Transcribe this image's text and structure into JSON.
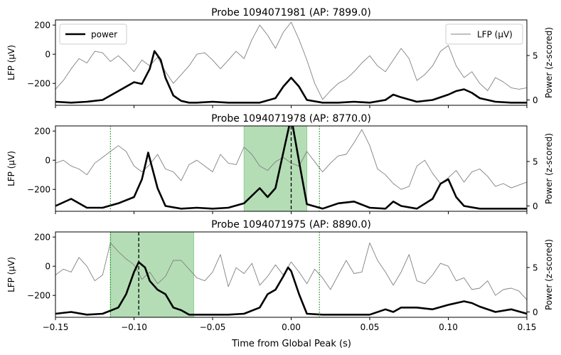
{
  "figure": {
    "xlabel": "Time from Global Peak (s)",
    "legend": {
      "power_label": "power",
      "lfp_label": "LFP (µV)"
    }
  },
  "chart_data": [
    {
      "type": "line",
      "title": "Probe 1094071981 (AP: 7899.0)",
      "xlabel": "Time from Global Peak (s)",
      "ylabel": "LFP (µV)",
      "ylabel_right": "Power (z-scored)",
      "xlim": [
        -0.15,
        0.15
      ],
      "ylim": [
        -350,
        235
      ],
      "ylim_right": [
        -0.6,
        9.0
      ],
      "yticks": [
        -200,
        0,
        200
      ],
      "yticks_right": [
        0,
        5
      ],
      "xticks": [
        -0.15,
        -0.1,
        -0.05,
        0.0,
        0.05,
        0.1,
        0.15
      ],
      "legend": [
        "power",
        "LFP (µV)"
      ],
      "series": [
        {
          "name": "LFP (µV)",
          "axis": "left",
          "color": "#808080",
          "x": [
            -0.15,
            -0.145,
            -0.14,
            -0.135,
            -0.13,
            -0.125,
            -0.12,
            -0.115,
            -0.11,
            -0.105,
            -0.1,
            -0.095,
            -0.09,
            -0.085,
            -0.08,
            -0.075,
            -0.07,
            -0.065,
            -0.06,
            -0.055,
            -0.05,
            -0.045,
            -0.04,
            -0.035,
            -0.03,
            -0.025,
            -0.02,
            -0.015,
            -0.01,
            -0.005,
            0.0,
            0.005,
            0.01,
            0.015,
            0.02,
            0.025,
            0.03,
            0.035,
            0.04,
            0.045,
            0.05,
            0.055,
            0.06,
            0.065,
            0.07,
            0.075,
            0.08,
            0.085,
            0.09,
            0.095,
            0.1,
            0.105,
            0.11,
            0.115,
            0.12,
            0.125,
            0.13,
            0.135,
            0.14,
            0.145,
            0.15
          ],
          "y": [
            -240,
            -180,
            -100,
            -30,
            -60,
            20,
            10,
            -50,
            -10,
            -60,
            -120,
            -40,
            -80,
            -20,
            -120,
            -200,
            -140,
            -80,
            0,
            10,
            -40,
            -100,
            -40,
            20,
            -30,
            100,
            200,
            130,
            40,
            150,
            220,
            100,
            -40,
            -200,
            -310,
            -250,
            -200,
            -170,
            -120,
            -60,
            -10,
            -80,
            -120,
            -40,
            40,
            -30,
            -180,
            -140,
            -80,
            20,
            60,
            -80,
            -160,
            -120,
            -200,
            -250,
            -160,
            -190,
            -230,
            -240,
            -230
          ]
        },
        {
          "name": "power",
          "axis": "right",
          "color": "#000000",
          "x": [
            -0.15,
            -0.14,
            -0.13,
            -0.12,
            -0.11,
            -0.1,
            -0.095,
            -0.09,
            -0.087,
            -0.083,
            -0.08,
            -0.075,
            -0.07,
            -0.065,
            -0.06,
            -0.05,
            -0.04,
            -0.03,
            -0.02,
            -0.01,
            -0.005,
            0.0,
            0.005,
            0.01,
            0.02,
            0.03,
            0.04,
            0.05,
            0.06,
            0.065,
            0.07,
            0.08,
            0.09,
            0.1,
            0.105,
            0.11,
            0.115,
            0.12,
            0.13,
            0.14,
            0.15
          ],
          "y": [
            -0.2,
            -0.3,
            -0.2,
            0.0,
            1.0,
            2.0,
            1.8,
            3.5,
            5.5,
            4.5,
            2.5,
            0.5,
            -0.1,
            -0.3,
            -0.3,
            -0.2,
            -0.3,
            -0.3,
            -0.3,
            0.2,
            1.5,
            2.5,
            1.5,
            0.0,
            -0.3,
            -0.3,
            -0.2,
            -0.3,
            0.0,
            0.6,
            0.3,
            -0.2,
            0.0,
            0.6,
            1.0,
            1.2,
            0.8,
            0.2,
            -0.2,
            -0.3,
            -0.3
          ]
        }
      ]
    },
    {
      "type": "line",
      "title": "Probe 1094071978 (AP: 8770.0)",
      "xlabel": "Time from Global Peak (s)",
      "ylabel": "LFP (µV)",
      "ylabel_right": "Power (z-scored)",
      "xlim": [
        -0.15,
        0.15
      ],
      "ylim": [
        -350,
        235
      ],
      "ylim_right": [
        -0.6,
        9.0
      ],
      "yticks": [
        -200,
        0,
        200
      ],
      "yticks_right": [
        0,
        5
      ],
      "xticks": [
        -0.15,
        -0.1,
        -0.05,
        0.0,
        0.05,
        0.1,
        0.15
      ],
      "shaded_region": {
        "x": [
          -0.03,
          0.01
        ],
        "color": "#4caf50"
      },
      "dotted_vlines": [
        -0.115,
        0.018
      ],
      "dashed_vline": 0.0,
      "series": [
        {
          "name": "LFP (µV)",
          "axis": "left",
          "color": "#808080",
          "x": [
            -0.15,
            -0.145,
            -0.14,
            -0.135,
            -0.13,
            -0.125,
            -0.12,
            -0.115,
            -0.11,
            -0.105,
            -0.1,
            -0.095,
            -0.09,
            -0.085,
            -0.08,
            -0.075,
            -0.07,
            -0.065,
            -0.06,
            -0.055,
            -0.05,
            -0.045,
            -0.04,
            -0.035,
            -0.03,
            -0.025,
            -0.02,
            -0.015,
            -0.01,
            -0.005,
            0.0,
            0.005,
            0.01,
            0.015,
            0.02,
            0.025,
            0.03,
            0.035,
            0.04,
            0.045,
            0.05,
            0.055,
            0.06,
            0.065,
            0.07,
            0.075,
            0.08,
            0.085,
            0.09,
            0.095,
            0.1,
            0.105,
            0.11,
            0.115,
            0.12,
            0.125,
            0.13,
            0.135,
            0.14,
            0.145,
            0.15
          ],
          "y": [
            -20,
            0,
            -40,
            -60,
            -100,
            -20,
            20,
            60,
            100,
            60,
            -40,
            -80,
            -30,
            40,
            -60,
            -80,
            -140,
            -30,
            0,
            -40,
            -80,
            40,
            -20,
            -30,
            90,
            40,
            -40,
            -70,
            -10,
            20,
            -20,
            -40,
            60,
            -10,
            -80,
            -20,
            30,
            40,
            120,
            210,
            100,
            -60,
            -100,
            -160,
            -200,
            -180,
            -40,
            0,
            -90,
            -160,
            -120,
            -70,
            -150,
            -80,
            -60,
            -110,
            -180,
            -160,
            -190,
            -170,
            -150
          ]
        },
        {
          "name": "power",
          "axis": "right",
          "color": "#000000",
          "x": [
            -0.15,
            -0.14,
            -0.13,
            -0.12,
            -0.11,
            -0.1,
            -0.095,
            -0.091,
            -0.085,
            -0.08,
            -0.07,
            -0.06,
            -0.05,
            -0.04,
            -0.03,
            -0.02,
            -0.015,
            -0.01,
            -0.005,
            0.0,
            0.005,
            0.01,
            0.02,
            0.03,
            0.04,
            0.05,
            0.06,
            0.065,
            0.07,
            0.08,
            0.09,
            0.095,
            0.1,
            0.105,
            0.11,
            0.12,
            0.13,
            0.14,
            0.15
          ],
          "y": [
            0.0,
            0.8,
            -0.2,
            -0.2,
            0.3,
            1.0,
            3.0,
            6.0,
            2.0,
            0.0,
            -0.3,
            -0.2,
            -0.3,
            -0.2,
            0.3,
            2.0,
            1.0,
            2.0,
            6.0,
            10.0,
            5.0,
            0.2,
            -0.3,
            0.3,
            0.5,
            -0.2,
            -0.3,
            0.5,
            0.0,
            -0.3,
            0.8,
            2.5,
            3.0,
            1.0,
            0.0,
            -0.3,
            -0.3,
            -0.3,
            -0.3
          ]
        }
      ]
    },
    {
      "type": "line",
      "title": "Probe 1094071975 (AP: 8890.0)",
      "xlabel": "Time from Global Peak (s)",
      "ylabel": "LFP (µV)",
      "ylabel_right": "Power (z-scored)",
      "xlim": [
        -0.15,
        0.15
      ],
      "ylim": [
        -350,
        235
      ],
      "ylim_right": [
        -0.6,
        9.0
      ],
      "yticks": [
        -200,
        0,
        200
      ],
      "yticks_right": [
        0,
        5
      ],
      "xticks": [
        -0.15,
        -0.1,
        -0.05,
        0.0,
        0.05,
        0.1,
        0.15
      ],
      "shaded_region": {
        "x": [
          -0.115,
          -0.062
        ],
        "color": "#4caf50"
      },
      "dotted_vlines": [
        -0.115,
        0.018
      ],
      "dashed_vline": -0.097,
      "series": [
        {
          "name": "LFP (µV)",
          "axis": "left",
          "color": "#808080",
          "x": [
            -0.15,
            -0.145,
            -0.14,
            -0.135,
            -0.13,
            -0.125,
            -0.12,
            -0.115,
            -0.11,
            -0.105,
            -0.1,
            -0.095,
            -0.09,
            -0.085,
            -0.08,
            -0.075,
            -0.07,
            -0.065,
            -0.06,
            -0.055,
            -0.05,
            -0.045,
            -0.04,
            -0.035,
            -0.03,
            -0.025,
            -0.02,
            -0.015,
            -0.01,
            -0.005,
            0.0,
            0.005,
            0.01,
            0.015,
            0.02,
            0.025,
            0.03,
            0.035,
            0.04,
            0.045,
            0.05,
            0.055,
            0.06,
            0.065,
            0.07,
            0.075,
            0.08,
            0.085,
            0.09,
            0.095,
            0.1,
            0.105,
            0.11,
            0.115,
            0.12,
            0.125,
            0.13,
            0.135,
            0.14,
            0.145,
            0.15
          ],
          "y": [
            -60,
            -20,
            -40,
            60,
            0,
            -100,
            -60,
            160,
            100,
            50,
            10,
            -90,
            -40,
            -120,
            -70,
            40,
            40,
            -20,
            -80,
            -100,
            -40,
            80,
            -140,
            -10,
            -50,
            20,
            -130,
            -70,
            10,
            -60,
            30,
            -40,
            -120,
            -20,
            -80,
            -160,
            -60,
            40,
            -50,
            -40,
            160,
            40,
            -40,
            -130,
            -40,
            80,
            -100,
            -120,
            -60,
            20,
            0,
            -100,
            -80,
            -160,
            -150,
            -100,
            -200,
            -160,
            -150,
            -170,
            -230
          ]
        },
        {
          "name": "power",
          "axis": "right",
          "color": "#000000",
          "x": [
            -0.15,
            -0.14,
            -0.13,
            -0.12,
            -0.11,
            -0.105,
            -0.1,
            -0.097,
            -0.093,
            -0.09,
            -0.085,
            -0.08,
            -0.075,
            -0.07,
            -0.065,
            -0.06,
            -0.05,
            -0.04,
            -0.03,
            -0.02,
            -0.015,
            -0.01,
            -0.005,
            -0.002,
            0.0,
            0.005,
            0.01,
            0.02,
            0.03,
            0.04,
            0.05,
            0.06,
            0.065,
            0.07,
            0.08,
            0.09,
            0.1,
            0.105,
            0.11,
            0.115,
            0.12,
            0.13,
            0.14,
            0.15
          ],
          "y": [
            -0.2,
            0.0,
            -0.3,
            -0.2,
            0.5,
            2.0,
            4.5,
            5.6,
            5.0,
            3.5,
            2.5,
            2.0,
            0.5,
            0.2,
            -0.3,
            -0.3,
            -0.3,
            -0.3,
            -0.2,
            0.5,
            2.0,
            2.5,
            4.0,
            5.0,
            4.6,
            2.0,
            -0.2,
            -0.3,
            -0.3,
            -0.3,
            -0.3,
            0.3,
            0.0,
            0.5,
            0.5,
            0.3,
            0.8,
            1.0,
            1.2,
            1.0,
            0.6,
            0.0,
            0.3,
            -0.2
          ]
        }
      ]
    }
  ]
}
